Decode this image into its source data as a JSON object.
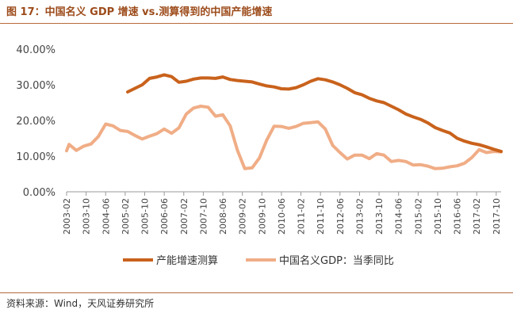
{
  "header": {
    "title": "图 17：中国名义 GDP 增速 vs.测算得到的中国产能增速"
  },
  "footer": {
    "source": "资料来源：Wind，天风证券研究所"
  },
  "chart_data": {
    "type": "line",
    "title": "图 17：中国名义 GDP 增速 vs.测算得到的中国产能增速",
    "xlabel": "",
    "ylabel": "",
    "ylim": [
      0,
      40
    ],
    "y_ticks": [
      "0.00%",
      "10.00%",
      "20.00%",
      "30.00%",
      "40.00%"
    ],
    "grid": false,
    "legend_position": "bottom",
    "x_tick_labels": [
      "2003-02",
      "2003-10",
      "2004-06",
      "2005-02",
      "2005-10",
      "2006-06",
      "2007-02",
      "2007-10",
      "2008-06",
      "2009-02",
      "2009-10",
      "2010-06",
      "2011-02",
      "2011-10",
      "2012-06",
      "2013-02",
      "2013-10",
      "2014-06",
      "2015-02",
      "2015-10",
      "2016-06",
      "2017-02",
      "2017-10"
    ],
    "x_start": "2003-02",
    "x_end": "2017-12",
    "colors": {
      "capacity": "#c9621c",
      "gdp": "#f0ad86",
      "axis": "#999999"
    },
    "series": [
      {
        "name": "产能增速测算",
        "color": "#c9621c",
        "points": [
          [
            "2005-03",
            28.0
          ],
          [
            "2005-06",
            29.0
          ],
          [
            "2005-09",
            30.0
          ],
          [
            "2005-12",
            31.8
          ],
          [
            "2006-03",
            32.2
          ],
          [
            "2006-06",
            32.8
          ],
          [
            "2006-09",
            32.3
          ],
          [
            "2006-12",
            30.7
          ],
          [
            "2007-03",
            31.0
          ],
          [
            "2007-06",
            31.6
          ],
          [
            "2007-09",
            31.9
          ],
          [
            "2007-12",
            31.9
          ],
          [
            "2008-03",
            31.8
          ],
          [
            "2008-06",
            32.2
          ],
          [
            "2008-09",
            31.5
          ],
          [
            "2008-12",
            31.2
          ],
          [
            "2009-03",
            31.0
          ],
          [
            "2009-06",
            30.8
          ],
          [
            "2009-09",
            30.2
          ],
          [
            "2009-12",
            29.7
          ],
          [
            "2010-03",
            29.4
          ],
          [
            "2010-06",
            28.9
          ],
          [
            "2010-09",
            28.8
          ],
          [
            "2010-12",
            29.2
          ],
          [
            "2011-03",
            30.0
          ],
          [
            "2011-06",
            31.0
          ],
          [
            "2011-09",
            31.7
          ],
          [
            "2011-12",
            31.4
          ],
          [
            "2012-03",
            30.8
          ],
          [
            "2012-06",
            30.0
          ],
          [
            "2012-09",
            29.0
          ],
          [
            "2012-12",
            27.8
          ],
          [
            "2013-03",
            27.2
          ],
          [
            "2013-06",
            26.2
          ],
          [
            "2013-09",
            25.5
          ],
          [
            "2013-12",
            25.0
          ],
          [
            "2014-03",
            24.0
          ],
          [
            "2014-06",
            23.0
          ],
          [
            "2014-09",
            21.8
          ],
          [
            "2014-12",
            21.0
          ],
          [
            "2015-03",
            20.3
          ],
          [
            "2015-06",
            19.3
          ],
          [
            "2015-09",
            18.0
          ],
          [
            "2015-12",
            17.2
          ],
          [
            "2016-03",
            16.5
          ],
          [
            "2016-06",
            15.0
          ],
          [
            "2016-09",
            14.2
          ],
          [
            "2016-12",
            13.6
          ],
          [
            "2017-03",
            13.2
          ],
          [
            "2017-06",
            12.6
          ],
          [
            "2017-09",
            11.9
          ],
          [
            "2017-12",
            11.3
          ]
        ]
      },
      {
        "name": "中国名义GDP：当季同比",
        "color": "#f0ad86",
        "points": [
          [
            "2003-02",
            11.5
          ],
          [
            "2003-03",
            13.3
          ],
          [
            "2003-06",
            11.6
          ],
          [
            "2003-09",
            12.8
          ],
          [
            "2003-12",
            13.4
          ],
          [
            "2004-03",
            15.5
          ],
          [
            "2004-06",
            19.0
          ],
          [
            "2004-09",
            18.5
          ],
          [
            "2004-12",
            17.2
          ],
          [
            "2005-03",
            16.9
          ],
          [
            "2005-06",
            15.8
          ],
          [
            "2005-09",
            14.8
          ],
          [
            "2005-12",
            15.6
          ],
          [
            "2006-03",
            16.3
          ],
          [
            "2006-06",
            17.6
          ],
          [
            "2006-09",
            16.4
          ],
          [
            "2006-12",
            17.9
          ],
          [
            "2007-03",
            21.8
          ],
          [
            "2007-06",
            23.5
          ],
          [
            "2007-09",
            24.0
          ],
          [
            "2007-12",
            23.7
          ],
          [
            "2008-03",
            21.2
          ],
          [
            "2008-06",
            21.6
          ],
          [
            "2008-09",
            18.5
          ],
          [
            "2008-12",
            11.6
          ],
          [
            "2009-03",
            6.5
          ],
          [
            "2009-06",
            6.7
          ],
          [
            "2009-09",
            9.5
          ],
          [
            "2009-12",
            14.5
          ],
          [
            "2010-03",
            18.4
          ],
          [
            "2010-06",
            18.3
          ],
          [
            "2010-09",
            17.8
          ],
          [
            "2010-12",
            18.3
          ],
          [
            "2011-03",
            19.2
          ],
          [
            "2011-06",
            19.4
          ],
          [
            "2011-09",
            19.6
          ],
          [
            "2011-12",
            17.6
          ],
          [
            "2012-03",
            13.0
          ],
          [
            "2012-06",
            11.0
          ],
          [
            "2012-09",
            9.2
          ],
          [
            "2012-12",
            10.3
          ],
          [
            "2013-03",
            10.3
          ],
          [
            "2013-06",
            9.3
          ],
          [
            "2013-09",
            10.7
          ],
          [
            "2013-12",
            10.3
          ],
          [
            "2014-03",
            8.5
          ],
          [
            "2014-06",
            8.8
          ],
          [
            "2014-09",
            8.5
          ],
          [
            "2014-12",
            7.5
          ],
          [
            "2015-03",
            7.6
          ],
          [
            "2015-06",
            7.2
          ],
          [
            "2015-09",
            6.5
          ],
          [
            "2015-12",
            6.6
          ],
          [
            "2016-03",
            7.0
          ],
          [
            "2016-06",
            7.3
          ],
          [
            "2016-09",
            8.0
          ],
          [
            "2016-12",
            9.6
          ],
          [
            "2017-03",
            11.8
          ],
          [
            "2017-06",
            11.0
          ],
          [
            "2017-09",
            11.3
          ],
          [
            "2017-12",
            11.2
          ]
        ]
      }
    ]
  }
}
